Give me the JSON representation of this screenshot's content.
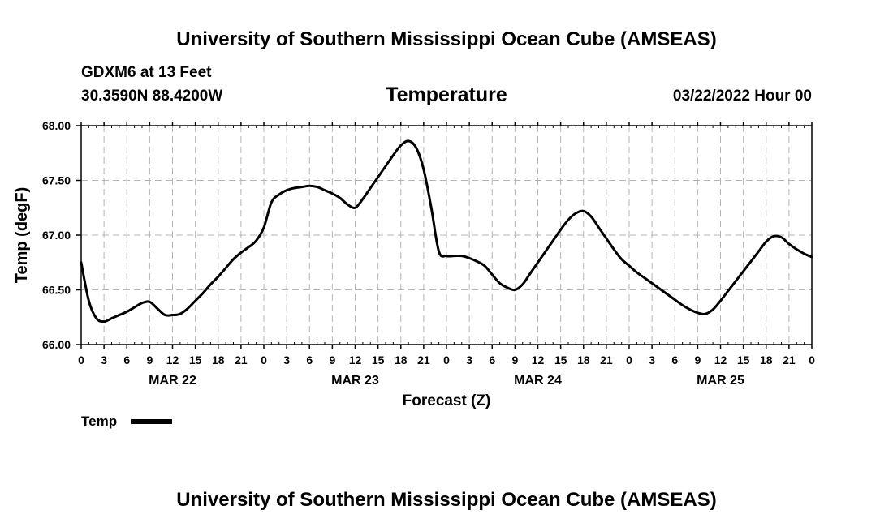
{
  "header": {
    "title": "University of Southern Mississippi Ocean Cube (AMSEAS)",
    "station": "GDXM6 at 13 Feet",
    "location": "30.3590N  88.4200W",
    "variable": "Temperature",
    "datetime": "03/22/2022 Hour 00"
  },
  "footer": {
    "title": "University of Southern Mississippi Ocean Cube (AMSEAS)"
  },
  "colors": {
    "line": "#000000",
    "grid": "#b4b4b4",
    "background": "#ffffff"
  },
  "chart_data": {
    "type": "line",
    "title": "Temperature",
    "xlabel": "Forecast (Z)",
    "ylabel": "Temp (degF)",
    "xlim": [
      0,
      96
    ],
    "ylim": [
      66.0,
      68.0
    ],
    "grid": true,
    "x_tick_step_hours": 3,
    "x_tick_labels": [
      "0",
      "3",
      "6",
      "9",
      "12",
      "15",
      "18",
      "21",
      "0",
      "3",
      "6",
      "9",
      "12",
      "15",
      "18",
      "21",
      "0",
      "3",
      "6",
      "9",
      "12",
      "15",
      "18",
      "21",
      "0",
      "3",
      "6",
      "9",
      "12",
      "15",
      "18",
      "21",
      "0"
    ],
    "y_ticks": [
      66.0,
      66.5,
      67.0,
      67.5,
      68.0
    ],
    "y_tick_labels": [
      "66.00",
      "66.50",
      "67.00",
      "67.50",
      "68.00"
    ],
    "day_labels": [
      {
        "label": "MAR 22",
        "hour": 12
      },
      {
        "label": "MAR 23",
        "hour": 36
      },
      {
        "label": "MAR 24",
        "hour": 60
      },
      {
        "label": "MAR 25",
        "hour": 84
      }
    ],
    "legend": {
      "label": "Temp",
      "position": "bottom-left"
    },
    "series": [
      {
        "name": "Temp",
        "x": [
          0,
          1,
          2,
          3,
          4,
          5,
          6,
          7,
          8,
          9,
          10,
          11,
          12,
          13,
          14,
          15,
          16,
          17,
          18,
          19,
          20,
          21,
          22,
          23,
          24,
          25,
          26,
          27,
          28,
          29,
          30,
          31,
          32,
          33,
          34,
          35,
          36,
          37,
          38,
          39,
          40,
          41,
          42,
          43,
          44,
          45,
          46,
          47,
          48,
          49,
          50,
          51,
          52,
          53,
          54,
          55,
          56,
          57,
          58,
          59,
          60,
          61,
          62,
          63,
          64,
          65,
          66,
          67,
          68,
          69,
          70,
          71,
          72,
          73,
          74,
          75,
          76,
          77,
          78,
          79,
          80,
          81,
          82,
          83,
          84,
          85,
          86,
          87,
          88,
          89,
          90,
          91,
          92,
          93,
          94,
          95,
          96
        ],
        "values": [
          66.75,
          66.4,
          66.24,
          66.21,
          66.24,
          66.27,
          66.3,
          66.34,
          66.38,
          66.39,
          66.33,
          66.27,
          66.27,
          66.28,
          66.33,
          66.4,
          66.47,
          66.55,
          66.62,
          66.7,
          66.78,
          66.84,
          66.89,
          66.95,
          67.07,
          67.3,
          67.37,
          67.41,
          67.43,
          67.44,
          67.45,
          67.44,
          67.41,
          67.38,
          67.34,
          67.28,
          67.25,
          67.33,
          67.43,
          67.53,
          67.63,
          67.73,
          67.82,
          67.86,
          67.8,
          67.6,
          67.25,
          66.85,
          66.81,
          66.81,
          66.81,
          66.79,
          66.76,
          66.72,
          66.64,
          66.56,
          66.52,
          66.5,
          66.55,
          66.65,
          66.75,
          66.85,
          66.95,
          67.05,
          67.14,
          67.2,
          67.22,
          67.17,
          67.07,
          66.97,
          66.87,
          66.78,
          66.72,
          66.66,
          66.61,
          66.56,
          66.51,
          66.46,
          66.41,
          66.36,
          66.32,
          66.29,
          66.28,
          66.32,
          66.4,
          66.49,
          66.58,
          66.67,
          66.76,
          66.85,
          66.94,
          66.99,
          66.98,
          66.92,
          66.87,
          66.83,
          66.8
        ]
      }
    ]
  }
}
